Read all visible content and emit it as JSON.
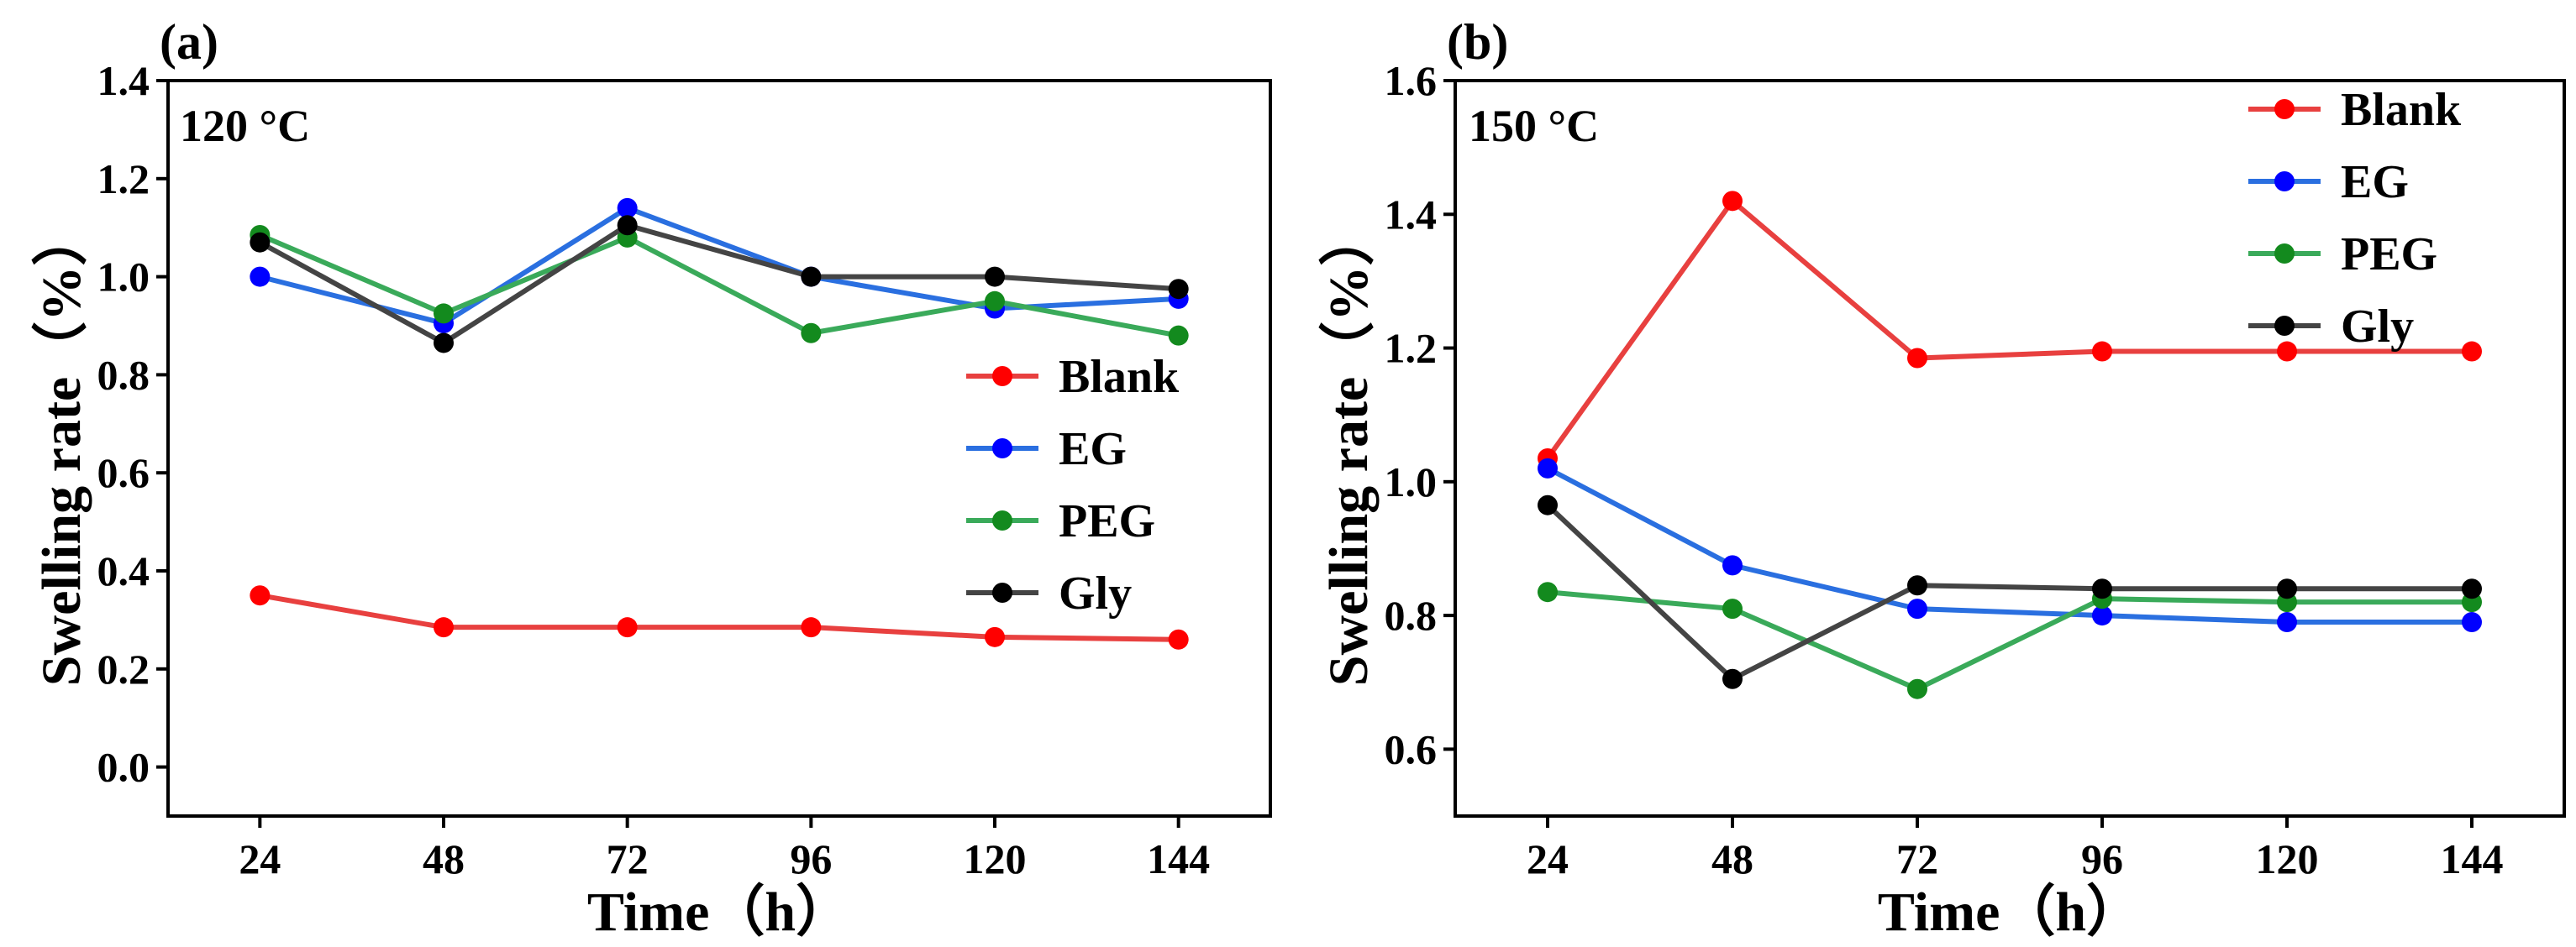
{
  "chart_data": [
    {
      "panel": "(a)",
      "annotation": "120 °C",
      "type": "line",
      "x": [
        24,
        48,
        72,
        96,
        120,
        144
      ],
      "xticklabels": [
        "24",
        "48",
        "72",
        "96",
        "120",
        "144"
      ],
      "xlabel": "Time（h）",
      "ylabel": "Swelling rate（%）",
      "ylim": [
        -0.1,
        1.4
      ],
      "yticks": [
        0.0,
        0.2,
        0.4,
        0.6,
        0.8,
        1.0,
        1.2,
        1.4
      ],
      "yticklabels": [
        "0.0",
        "0.2",
        "0.4",
        "0.6",
        "0.8",
        "1.0",
        "1.2",
        "1.4"
      ],
      "legend_position": "center-right",
      "series": [
        {
          "name": "Blank",
          "color": "#e8403f",
          "marker": "#ff0000",
          "values": [
            0.35,
            0.285,
            0.285,
            0.285,
            0.265,
            0.26
          ]
        },
        {
          "name": "EG",
          "color": "#2a6fe0",
          "marker": "#0000ff",
          "values": [
            1.0,
            0.905,
            1.14,
            1.0,
            0.935,
            0.955
          ]
        },
        {
          "name": "PEG",
          "color": "#3aaa5a",
          "marker": "#138a1e",
          "values": [
            1.085,
            0.925,
            1.08,
            0.885,
            0.95,
            0.88
          ]
        },
        {
          "name": "Gly",
          "color": "#444444",
          "marker": "#000000",
          "values": [
            1.07,
            0.865,
            1.105,
            1.0,
            1.0,
            0.975
          ]
        }
      ]
    },
    {
      "panel": "(b)",
      "annotation": "150 °C",
      "type": "line",
      "x": [
        24,
        48,
        72,
        96,
        120,
        144
      ],
      "xticklabels": [
        "24",
        "48",
        "72",
        "96",
        "120",
        "144"
      ],
      "xlabel": "Time（h）",
      "ylabel": "Swelling rate（%）",
      "ylim": [
        0.5,
        1.6
      ],
      "yticks": [
        0.6,
        0.8,
        1.0,
        1.2,
        1.4,
        1.6
      ],
      "yticklabels": [
        "0.6",
        "0.8",
        "1.0",
        "1.2",
        "1.4",
        "1.6"
      ],
      "legend_position": "top-right",
      "series": [
        {
          "name": "Blank",
          "color": "#e8403f",
          "marker": "#ff0000",
          "values": [
            1.035,
            1.42,
            1.185,
            1.195,
            1.195,
            1.195
          ]
        },
        {
          "name": "EG",
          "color": "#2a6fe0",
          "marker": "#0000ff",
          "values": [
            1.02,
            0.875,
            0.81,
            0.8,
            0.79,
            0.79
          ]
        },
        {
          "name": "PEG",
          "color": "#3aaa5a",
          "marker": "#138a1e",
          "values": [
            0.835,
            0.81,
            0.69,
            0.825,
            0.82,
            0.82
          ]
        },
        {
          "name": "Gly",
          "color": "#444444",
          "marker": "#000000",
          "values": [
            0.965,
            0.705,
            0.845,
            0.84,
            0.84,
            0.84
          ]
        }
      ]
    }
  ]
}
